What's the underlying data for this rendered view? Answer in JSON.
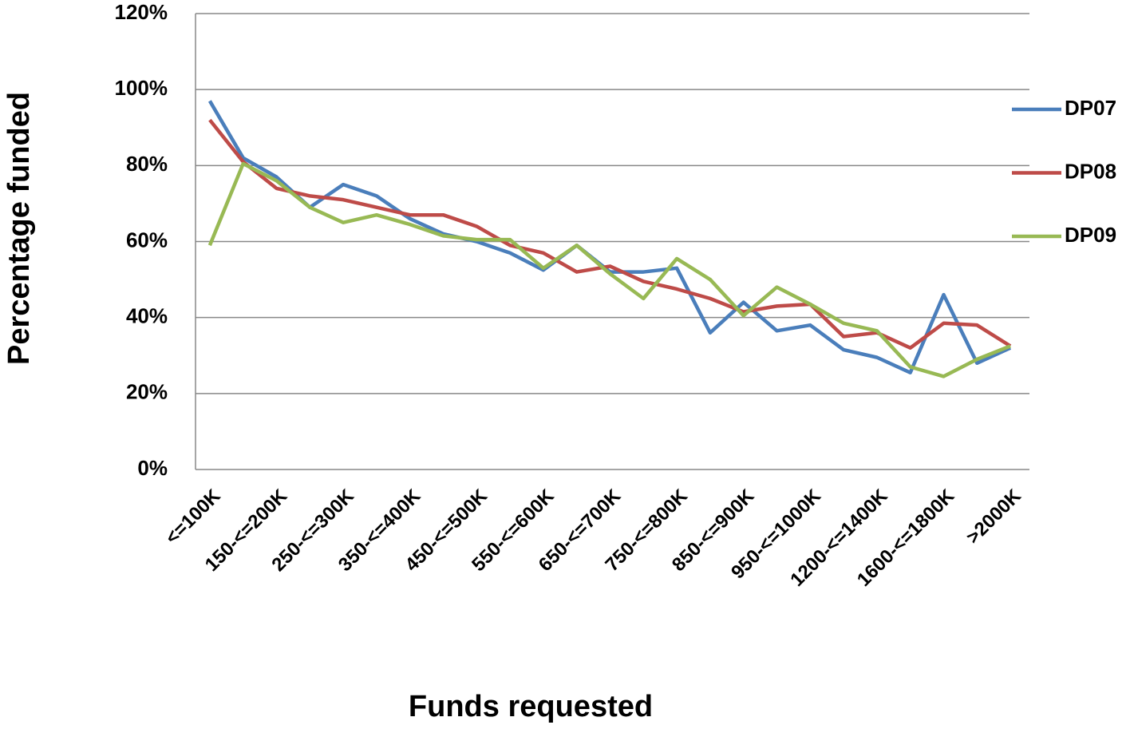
{
  "chart_data": {
    "type": "line",
    "x_label": "Funds requested",
    "y_label": "Percentage funded",
    "categories": [
      "<=100K",
      null,
      "150-<=200K",
      null,
      "250-<=300K",
      null,
      "350-<=400K",
      null,
      "450-<=500K",
      null,
      "550-<=600K",
      null,
      "650-<=700K",
      null,
      "750-<=800K",
      null,
      "850-<=900K",
      null,
      "950-<=1000K",
      null,
      "1200-<=1400K",
      null,
      "1600-<=1800K",
      null,
      ">2000K"
    ],
    "series": [
      {
        "name": "DP07",
        "color": "#4a7ebb",
        "values": [
          97,
          82,
          77,
          69,
          75,
          72,
          66,
          62,
          60,
          57,
          52.5,
          59,
          52,
          52,
          53,
          36,
          44,
          36.5,
          38,
          31.5,
          29.5,
          25.5,
          46,
          28,
          32
        ]
      },
      {
        "name": "DP08",
        "color": "#be4b48",
        "values": [
          92,
          81,
          74,
          72,
          71,
          69,
          67,
          67,
          64,
          59,
          57,
          52,
          53.5,
          49.5,
          47.5,
          45,
          41.5,
          43,
          43.5,
          35,
          36,
          32,
          38.5,
          38,
          32.5
        ]
      },
      {
        "name": "DP09",
        "color": "#98b954",
        "values": [
          59,
          80.5,
          76,
          69,
          65,
          67,
          64.5,
          61.5,
          60.5,
          60.5,
          53,
          59,
          51.5,
          45,
          55.5,
          50,
          40.5,
          48,
          43.5,
          38.5,
          36.5,
          27,
          24.5,
          29,
          32.5
        ]
      }
    ],
    "ylim": [
      0,
      120
    ],
    "yticks": [
      {
        "value": 0,
        "label": "0%"
      },
      {
        "value": 20,
        "label": "20%"
      },
      {
        "value": 40,
        "label": "40%"
      },
      {
        "value": 60,
        "label": "60%"
      },
      {
        "value": 80,
        "label": "80%"
      },
      {
        "value": 100,
        "label": "100%"
      },
      {
        "value": 120,
        "label": "120%"
      }
    ],
    "grid": true,
    "legend": "right"
  }
}
